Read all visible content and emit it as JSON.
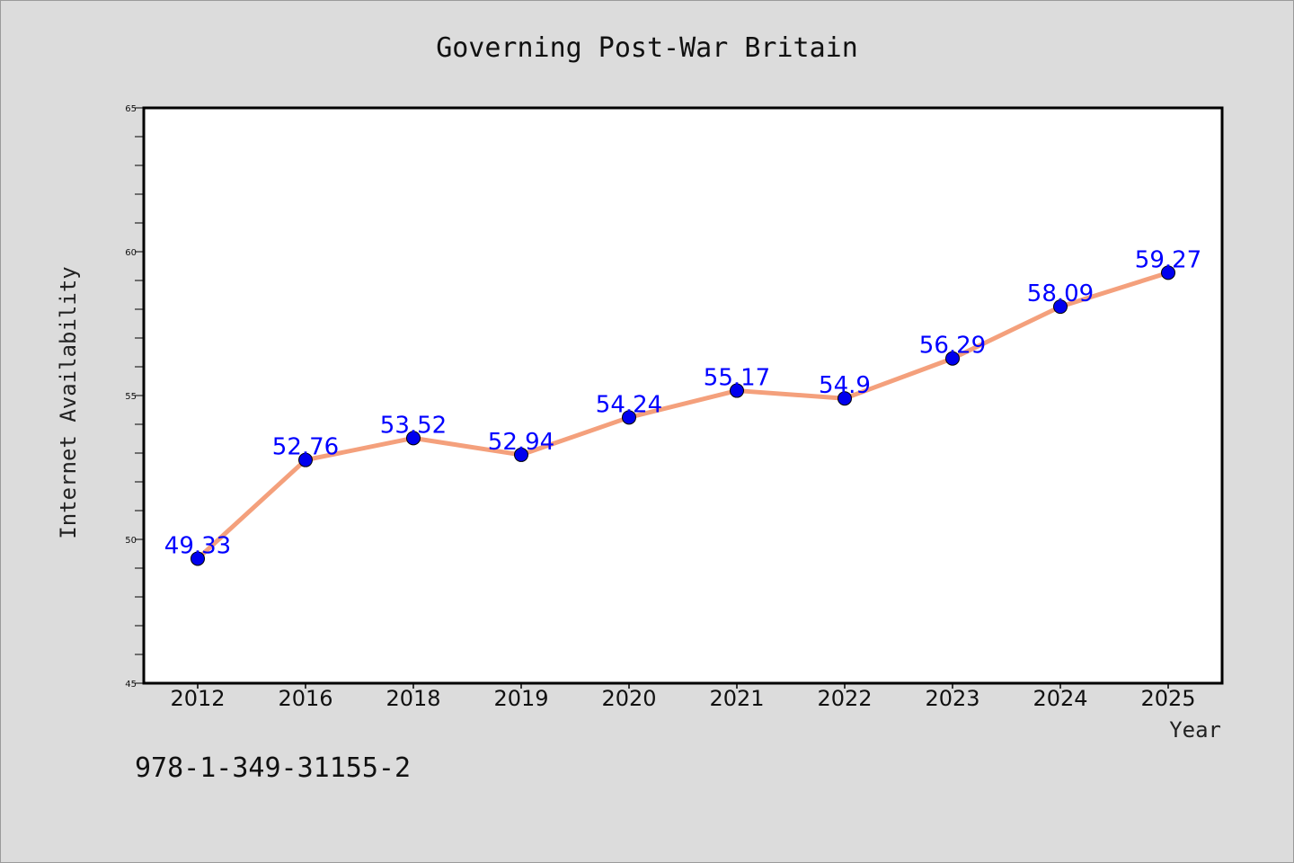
{
  "chart_data": {
    "type": "line",
    "title": "Governing Post-War Britain",
    "xlabel": "Year",
    "ylabel": "Internet Availability",
    "categories": [
      "2012",
      "2016",
      "2018",
      "2019",
      "2020",
      "2021",
      "2022",
      "2023",
      "2024",
      "2025"
    ],
    "series": [
      {
        "values": [
          49.33,
          52.76,
          53.52,
          52.94,
          54.24,
          55.17,
          54.9,
          56.29,
          58.09,
          59.27
        ],
        "data_labels": [
          "49.33",
          "52.76",
          "53.52",
          "52.94",
          "54.24",
          "55.17",
          "54.9",
          "56.29",
          "58.09",
          "59.27"
        ],
        "line_color": "#f4a07c",
        "marker_color": "#0000ee"
      }
    ],
    "ylim": [
      45,
      65
    ],
    "yticks": [
      "45",
      "50",
      "55",
      "60",
      "65"
    ],
    "grid": false,
    "legend": "none"
  },
  "footer": {
    "isbn": "978-1-349-31155-2"
  }
}
